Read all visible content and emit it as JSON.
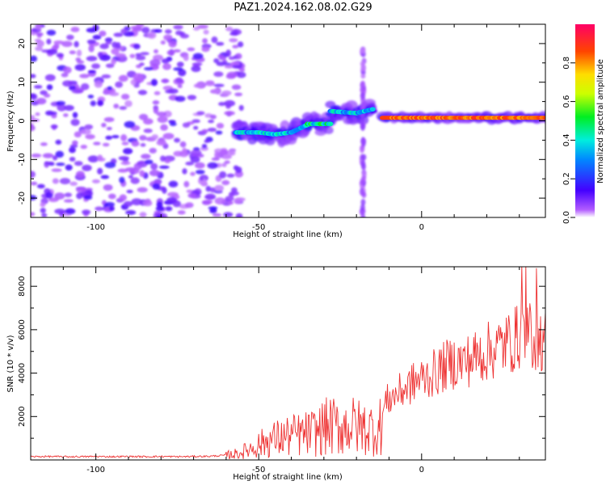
{
  "title": "PAZ1.2024.162.08.02.G29",
  "chart_data": [
    {
      "type": "heatmap",
      "xlabel": "Height of straight line (km)",
      "ylabel": "Frequency (Hz)",
      "xlim": [
        -120,
        38
      ],
      "ylim": [
        -25,
        25
      ],
      "xticks": [
        -100,
        -50,
        0
      ],
      "yticks": [
        -20,
        -10,
        0,
        10,
        20
      ],
      "colorbar": {
        "label": "Normalized spectral amplitude",
        "ticks": [
          0.0,
          0.2,
          0.4,
          0.6,
          0.8
        ],
        "range": [
          0,
          1
        ],
        "colormap": "rainbow (purple to red)"
      },
      "features": [
        {
          "kind": "noise",
          "x_range": [
            -120,
            -55
          ],
          "y_range": [
            -25,
            25
          ],
          "amplitude": 0.1
        },
        {
          "kind": "track",
          "x": [
            -57,
            -50,
            -45,
            -40,
            -35
          ],
          "y": [
            -3,
            -3,
            -3.5,
            -3,
            -1
          ],
          "amplitude": 0.45
        },
        {
          "kind": "track",
          "x": [
            -35,
            -28
          ],
          "y": [
            -0.8,
            -0.8
          ],
          "amplitude": 0.55
        },
        {
          "kind": "track",
          "x": [
            -28,
            -20,
            -15
          ],
          "y": [
            2.5,
            2,
            3
          ],
          "amplitude": 0.45
        },
        {
          "kind": "track",
          "x": [
            -12,
            38
          ],
          "y": [
            0.8,
            0.8
          ],
          "amplitude": 0.9
        },
        {
          "kind": "vertical-streak",
          "x": -18,
          "y_range": [
            -25,
            20
          ],
          "amplitude": 0.08
        }
      ]
    },
    {
      "type": "line",
      "xlabel": "Height of straight line (km)",
      "ylabel": "SNR (10 * v/v)",
      "xlim": [
        -120,
        38
      ],
      "ylim": [
        0,
        8900
      ],
      "xticks": [
        -100,
        -50,
        0
      ],
      "yticks": [
        2000,
        4000,
        6000,
        8000
      ],
      "color": "#ee3333",
      "series": [
        {
          "x": [
            -120,
            -115,
            -110,
            -105,
            -100,
            -95,
            -90,
            -85,
            -80,
            -75,
            -70,
            -65,
            -60,
            -56,
            -53,
            -50,
            -47,
            -44,
            -41,
            -38,
            -35,
            -32,
            -30,
            -28,
            -25,
            -22,
            -19,
            -16,
            -13,
            -11,
            -8,
            -5,
            -2,
            1,
            4,
            7,
            10,
            13,
            16,
            19,
            22,
            25,
            28,
            31,
            34,
            38
          ],
          "y": [
            150,
            160,
            150,
            150,
            160,
            150,
            160,
            150,
            160,
            150,
            160,
            170,
            220,
            300,
            500,
            700,
            900,
            1000,
            1100,
            1150,
            1200,
            1300,
            1500,
            1550,
            1500,
            1600,
            1500,
            1450,
            1400,
            2700,
            3000,
            3300,
            3600,
            3800,
            4000,
            4300,
            4500,
            4500,
            4700,
            4900,
            5100,
            5300,
            5500,
            5800,
            5700,
            5500
          ]
        }
      ]
    }
  ]
}
